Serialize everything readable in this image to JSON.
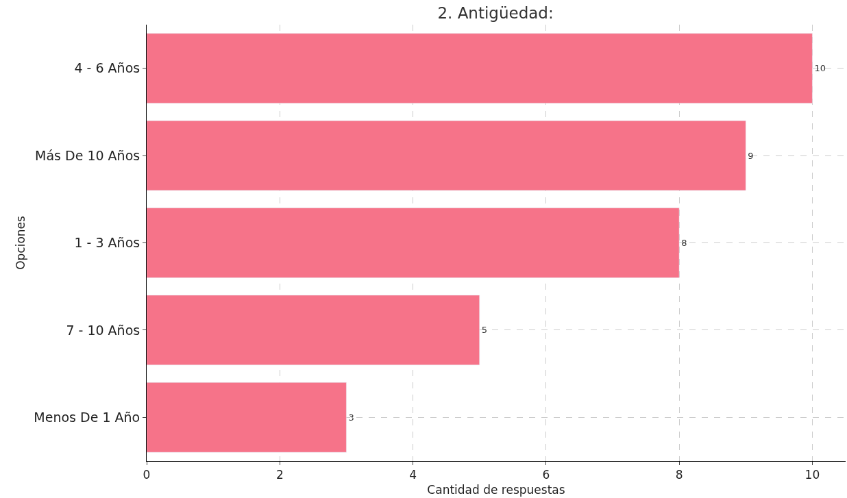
{
  "chart_data": {
    "type": "bar",
    "orientation": "horizontal",
    "title": "2. Antigüedad:",
    "xlabel": "Cantidad de respuestas",
    "ylabel": "Opciones",
    "categories": [
      "4 - 6 Años",
      "Más De 10 Años",
      "1 - 3 Años",
      "7 - 10 Años",
      "Menos De 1 Año"
    ],
    "values": [
      10,
      9,
      8,
      5,
      3
    ],
    "color": "#f67389",
    "xlim": [
      0,
      10.5
    ],
    "xticks": [
      0,
      2,
      4,
      6,
      8,
      10
    ],
    "grid": true,
    "data_labels": true
  }
}
